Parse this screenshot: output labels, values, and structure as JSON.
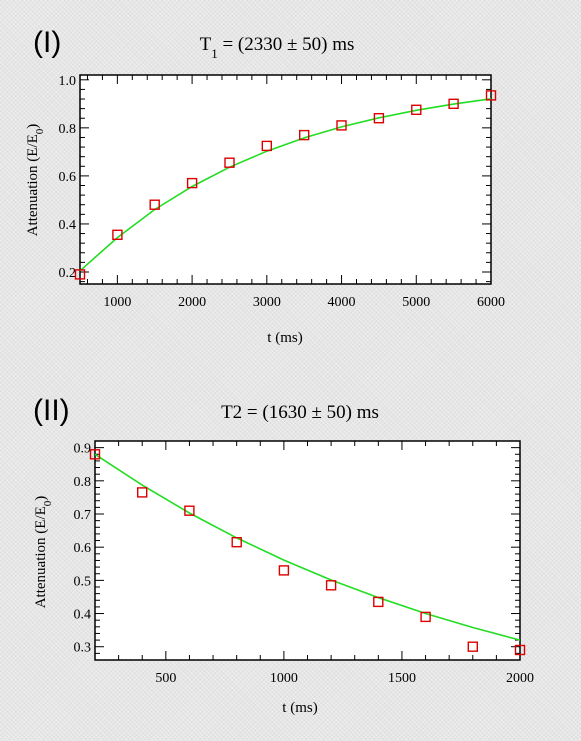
{
  "colors": {
    "fit_line": "#22dd22",
    "marker": "#dd0000",
    "plot_bg": "#ffffff"
  },
  "chart_data": [
    {
      "type": "scatter",
      "panel_label": "(I)",
      "title_main": "T",
      "title_sub": "1",
      "title_rest": " = (2330 ± 50) ms",
      "xlabel": "t (ms)",
      "ylabel_main": "Attenuation (E/E",
      "ylabel_sub": "0",
      "ylabel_end": ")",
      "xlim": [
        500,
        6000
      ],
      "ylim": [
        0.15,
        1.02
      ],
      "xticks": [
        1000,
        2000,
        3000,
        4000,
        5000,
        6000
      ],
      "xtick_labels": [
        "1000",
        "2000",
        "3000",
        "4000",
        "5000",
        "6000"
      ],
      "yticks": [
        0.2,
        0.4,
        0.6,
        0.8,
        1.0
      ],
      "ytick_labels": [
        "0.2",
        "0.4",
        "0.6",
        "0.8",
        "1.0"
      ],
      "series": [
        {
          "marker": "open-square",
          "x": [
            500,
            1000,
            1500,
            2000,
            2500,
            3000,
            3500,
            4000,
            4500,
            5000,
            5500,
            6000
          ],
          "y": [
            0.19,
            0.355,
            0.48,
            0.57,
            0.655,
            0.725,
            0.77,
            0.81,
            0.84,
            0.875,
            0.9,
            0.935
          ]
        }
      ],
      "fit": {
        "type": "line",
        "x": [
          500,
          1000,
          1500,
          2000,
          2500,
          3000,
          3500,
          4000,
          4500,
          5000,
          5500,
          6000
        ],
        "y": [
          0.205,
          0.343,
          0.46,
          0.556,
          0.636,
          0.703,
          0.758,
          0.804,
          0.842,
          0.873,
          0.899,
          0.921
        ]
      }
    },
    {
      "type": "scatter",
      "panel_label": "(II)",
      "title_main": "T2 = (1630 ± 50) ms",
      "title_sub": "",
      "title_rest": "",
      "xlabel": "t (ms)",
      "ylabel_main": "Attenuation (E/E",
      "ylabel_sub": "0",
      "ylabel_end": ")",
      "xlim": [
        200,
        2000
      ],
      "ylim": [
        0.26,
        0.92
      ],
      "xticks": [
        500,
        1000,
        1500,
        2000
      ],
      "xtick_labels": [
        "500",
        "1000",
        "1500",
        "2000"
      ],
      "yticks": [
        0.3,
        0.4,
        0.5,
        0.6,
        0.7,
        0.8,
        0.9
      ],
      "ytick_labels": [
        "0.3",
        "0.4",
        "0.5",
        "0.6",
        "0.7",
        "0.8",
        "0.9"
      ],
      "series": [
        {
          "marker": "open-square",
          "x": [
            200,
            400,
            600,
            800,
            1000,
            1200,
            1400,
            1600,
            1800,
            2000
          ],
          "y": [
            0.88,
            0.765,
            0.71,
            0.615,
            0.53,
            0.485,
            0.435,
            0.39,
            0.3,
            0.29
          ]
        }
      ],
      "fit": {
        "type": "line",
        "x": [
          200,
          400,
          600,
          800,
          1000,
          1200,
          1400,
          1600,
          1800,
          2000
        ],
        "y": [
          0.88,
          0.787,
          0.703,
          0.628,
          0.561,
          0.501,
          0.448,
          0.4,
          0.358,
          0.32
        ]
      }
    }
  ]
}
